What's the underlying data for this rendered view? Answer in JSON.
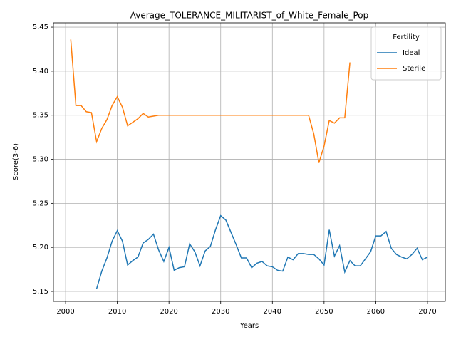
{
  "chart_data": {
    "type": "line",
    "title": "Average_TOLERANCE_MILITARIST_of_White_Female_Pop",
    "xlabel": "Years",
    "ylabel": "Score(3-6)",
    "x": [
      2001,
      2002,
      2003,
      2004,
      2005,
      2006,
      2007,
      2008,
      2009,
      2010,
      2011,
      2012,
      2013,
      2014,
      2015,
      2016,
      2017,
      2018,
      2019,
      2020,
      2021,
      2022,
      2023,
      2024,
      2025,
      2026,
      2027,
      2028,
      2029,
      2030,
      2031,
      2032,
      2033,
      2034,
      2035,
      2036,
      2037,
      2038,
      2039,
      2040,
      2041,
      2042,
      2043,
      2044,
      2045,
      2046,
      2047,
      2048,
      2049,
      2050,
      2051,
      2052,
      2053,
      2054,
      2055,
      2056,
      2057,
      2058,
      2059,
      2060,
      2061,
      2062,
      2063,
      2064,
      2065,
      2066,
      2067,
      2068,
      2069,
      2070
    ],
    "series": [
      {
        "name": "Ideal",
        "color": "#1f77b4",
        "values": [
          null,
          null,
          null,
          null,
          null,
          5.153,
          5.173,
          5.188,
          5.207,
          5.219,
          5.207,
          5.18,
          5.185,
          5.189,
          5.205,
          5.209,
          5.215,
          5.197,
          5.184,
          5.2,
          5.174,
          5.177,
          5.178,
          5.204,
          5.195,
          5.179,
          5.196,
          5.201,
          5.22,
          5.236,
          5.231,
          5.217,
          5.203,
          5.188,
          5.188,
          5.177,
          5.182,
          5.184,
          5.179,
          5.178,
          5.174,
          5.173,
          5.189,
          5.186,
          5.193,
          5.193,
          5.192,
          5.192,
          5.187,
          5.18,
          5.22,
          5.19,
          5.202,
          5.172,
          5.185,
          5.179,
          5.179,
          5.187,
          5.195,
          5.213,
          5.213,
          5.218,
          5.199,
          5.192,
          5.189,
          5.187,
          5.192,
          5.199,
          5.186,
          5.189
        ]
      },
      {
        "name": "Sterile",
        "color": "#ff7f0e",
        "values": [
          5.436,
          5.361,
          5.361,
          5.354,
          5.353,
          5.32,
          5.335,
          5.345,
          5.361,
          5.371,
          5.359,
          5.338,
          5.342,
          5.346,
          5.352,
          5.348,
          5.349,
          5.35,
          5.35,
          5.35,
          5.35,
          5.35,
          5.35,
          5.35,
          5.35,
          5.35,
          5.35,
          5.35,
          5.35,
          5.35,
          5.35,
          5.35,
          5.35,
          5.35,
          5.35,
          5.35,
          5.35,
          5.35,
          5.35,
          5.35,
          5.35,
          5.35,
          5.35,
          5.35,
          5.35,
          5.35,
          5.35,
          5.329,
          5.296,
          5.315,
          5.344,
          5.341,
          5.347,
          5.347,
          5.41,
          null,
          null,
          null,
          null,
          null,
          null,
          null,
          null,
          null,
          null,
          null,
          null,
          null,
          null,
          null
        ]
      }
    ],
    "xlim": [
      1997.65,
      2073.45
    ],
    "xticks": [
      2000,
      2010,
      2020,
      2030,
      2040,
      2050,
      2060,
      2070
    ],
    "ylim": [
      5.1387,
      5.4549
    ],
    "yticks": [
      5.15,
      {
        "value": 5.2,
        "label": "5.20"
      },
      5.25,
      {
        "value": 5.3,
        "label": "5.30"
      },
      5.35,
      {
        "value": 5.4,
        "label": "5.40"
      },
      5.45
    ],
    "grid": true,
    "legend": "upper right",
    "legend_title": "Fertility"
  }
}
